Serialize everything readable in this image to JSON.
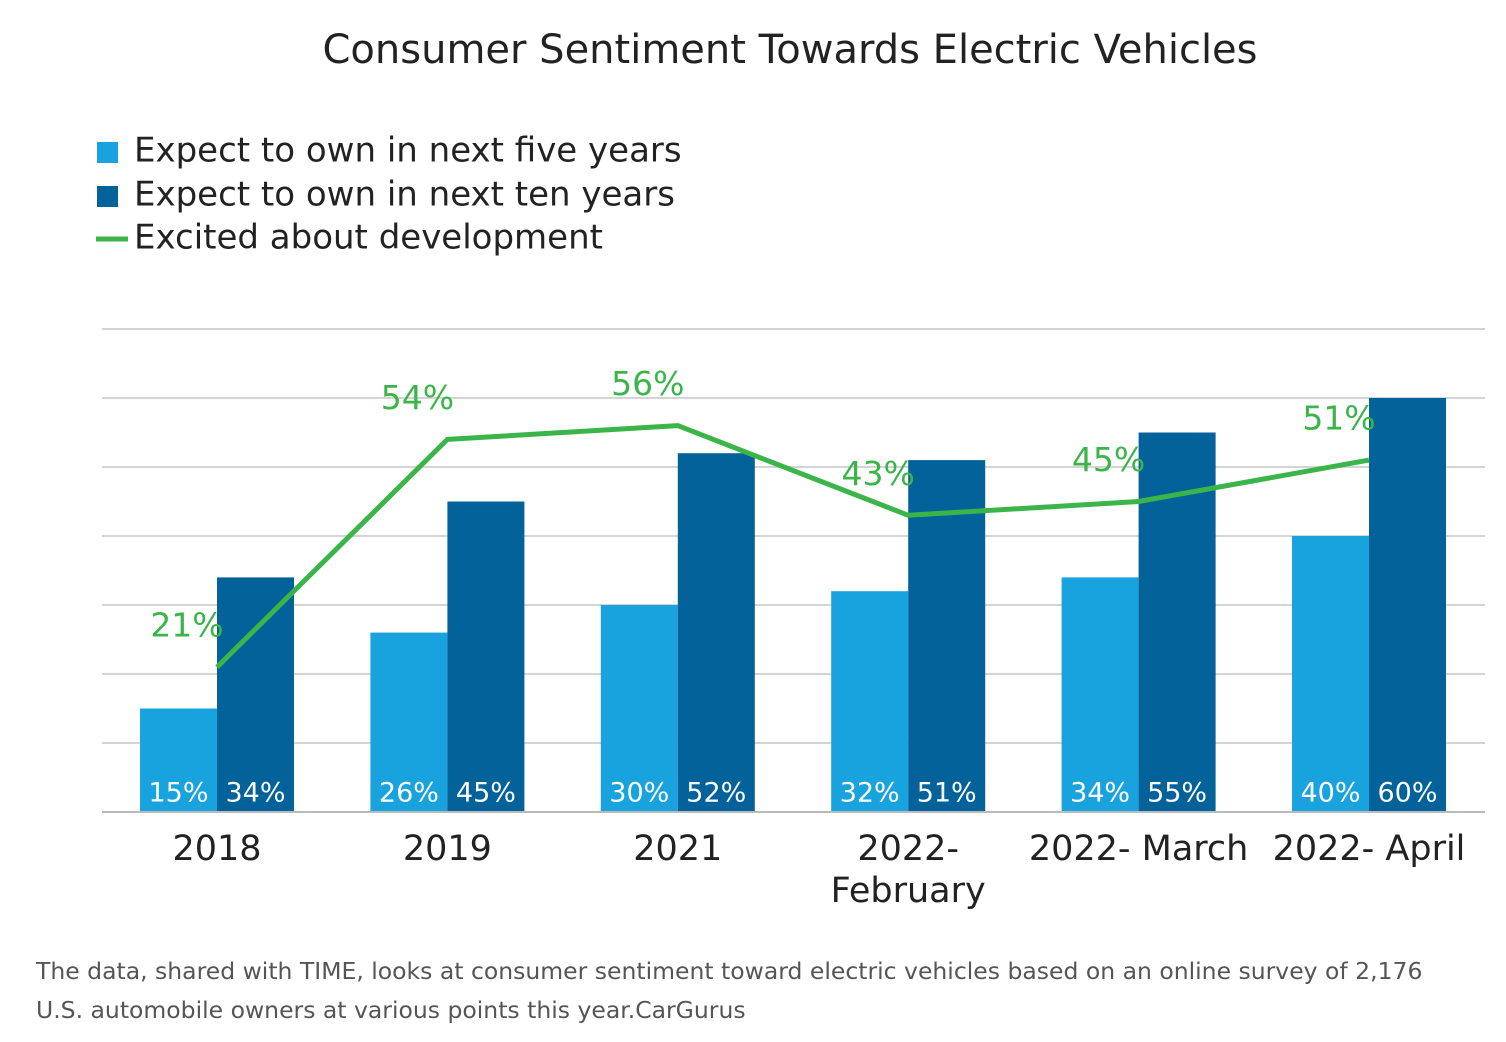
{
  "chart_data": {
    "type": "bar-line",
    "title": "Consumer Sentiment Towards Electric Vehicles",
    "categories": [
      "2018",
      "2019",
      "2021",
      "2022- February",
      "2022- March",
      "2022- April"
    ],
    "series": [
      {
        "name": "Expect to own in next five years",
        "type": "bar",
        "color": "#19a3de",
        "values": [
          15,
          26,
          30,
          32,
          34,
          40
        ],
        "value_labels": [
          "15%",
          "26%",
          "30%",
          "32%",
          "34%",
          "40%"
        ]
      },
      {
        "name": "Expect to own in next ten years",
        "type": "bar",
        "color": "#04629a",
        "values": [
          34,
          45,
          52,
          51,
          55,
          60
        ],
        "value_labels": [
          "34%",
          "45%",
          "52%",
          "51%",
          "55%",
          "60%"
        ]
      },
      {
        "name": "Excited about development",
        "type": "line",
        "color": "#3bb54a",
        "values": [
          21,
          54,
          56,
          43,
          45,
          51
        ],
        "value_labels": [
          "21%",
          "54%",
          "56%",
          "43%",
          "45%",
          "51%"
        ]
      }
    ],
    "ylim": [
      0,
      70
    ],
    "yticks": [
      0,
      10,
      20,
      30,
      40,
      50,
      60,
      70
    ],
    "grid": true,
    "legend": "top-left"
  },
  "caption": "The data, shared with TIME, looks at consumer sentiment toward electric vehicles based on an online survey of 2,176 U.S. automobile owners at various points this year.CarGurus"
}
